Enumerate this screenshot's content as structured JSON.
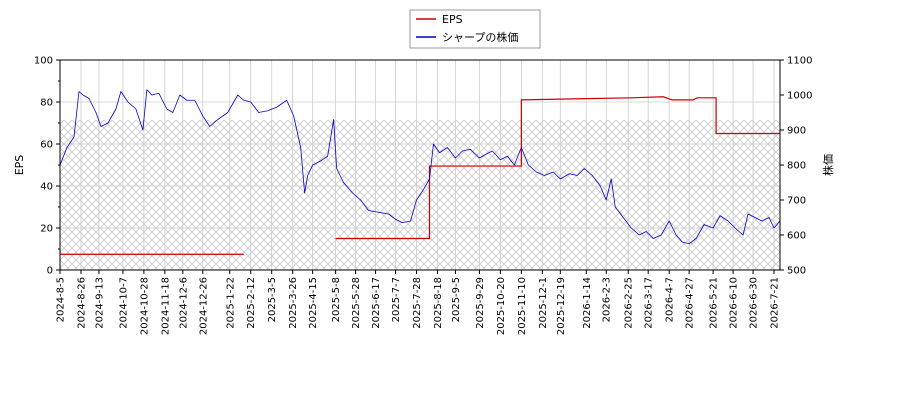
{
  "chart_data": {
    "type": "line",
    "legend": {
      "placement": "top-center",
      "entries": [
        "EPS",
        "シャープの株価"
      ]
    },
    "xlabel": "",
    "ylabel_left": "EPS",
    "ylabel_right": "株価",
    "ylim_left": [
      0,
      100
    ],
    "ylim_right": [
      500,
      1100
    ],
    "yticks_left": [
      "0",
      "20",
      "40",
      "60",
      "80",
      "100"
    ],
    "yticks_right": [
      "500",
      "600",
      "700",
      "800",
      "900",
      "1000",
      "1100"
    ],
    "x_range": [
      "2024-8-5",
      "2026-7-27"
    ],
    "x_tick_labels": [
      "2024-8-5",
      "2024-8-26",
      "2024-9-13",
      "2024-10-7",
      "2024-10-28",
      "2024-11-18",
      "2024-12-6",
      "2024-12-26",
      "2025-1-22",
      "2025-2-12",
      "2025-3-5",
      "2025-3-26",
      "2025-4-15",
      "2025-5-8",
      "2025-5-28",
      "2025-6-17",
      "2025-7-7",
      "2025-7-28",
      "2025-8-18",
      "2025-9-5",
      "2025-9-29",
      "2025-10-20",
      "2025-11-10",
      "2025-12-1",
      "2025-12-19",
      "2026-1-14",
      "2026-2-3",
      "2026-2-25",
      "2026-3-17",
      "2026-4-7",
      "2026-4-27",
      "2026-5-21",
      "2026-6-10",
      "2026-6-30",
      "2026-7-21"
    ],
    "grid": true,
    "colors": {
      "eps": "#cc0000",
      "price": "#0000cc"
    },
    "series": [
      {
        "name": "EPS",
        "axis": "left",
        "color": "#cc0000",
        "step": true,
        "segments": [
          {
            "points": [
              [
                "2024-8-5",
                7.5
              ],
              [
                "2025-2-5",
                7.5
              ]
            ]
          },
          {
            "points": [
              [
                "2025-5-8",
                15
              ],
              [
                "2025-8-10",
                15
              ],
              [
                "2025-8-10",
                49.5
              ],
              [
                "2025-11-10",
                49.5
              ],
              [
                "2025-11-10",
                81
              ],
              [
                "2026-1-1",
                81.5
              ],
              [
                "2026-3-1",
                82
              ],
              [
                "2026-4-1",
                82.5
              ],
              [
                "2026-4-10",
                81
              ],
              [
                "2026-5-1",
                81
              ],
              [
                "2026-5-5",
                82
              ],
              [
                "2026-5-24",
                82
              ],
              [
                "2026-5-24",
                65
              ],
              [
                "2026-7-31",
                65
              ]
            ]
          }
        ]
      },
      {
        "name": "シャープの株価",
        "axis": "right",
        "color": "#0000cc",
        "points": [
          [
            "2024-8-5",
            800
          ],
          [
            "2024-8-12",
            850
          ],
          [
            "2024-8-19",
            880
          ],
          [
            "2024-8-24",
            1010
          ],
          [
            "2024-8-28",
            1000
          ],
          [
            "2024-9-3",
            990
          ],
          [
            "2024-9-10",
            950
          ],
          [
            "2024-9-15",
            910
          ],
          [
            "2024-9-22",
            920
          ],
          [
            "2024-9-30",
            960
          ],
          [
            "2024-10-5",
            1010
          ],
          [
            "2024-10-12",
            980
          ],
          [
            "2024-10-20",
            960
          ],
          [
            "2024-10-27",
            900
          ],
          [
            "2024-10-31",
            1015
          ],
          [
            "2024-11-5",
            1000
          ],
          [
            "2024-11-12",
            1005
          ],
          [
            "2024-11-20",
            960
          ],
          [
            "2024-11-26",
            950
          ],
          [
            "2024-12-3",
            1000
          ],
          [
            "2024-12-10",
            985
          ],
          [
            "2024-12-18",
            985
          ],
          [
            "2024-12-26",
            940
          ],
          [
            "2025-1-2",
            910
          ],
          [
            "2025-1-10",
            930
          ],
          [
            "2025-1-20",
            950
          ],
          [
            "2025-1-30",
            1000
          ],
          [
            "2025-2-5",
            985
          ],
          [
            "2025-2-12",
            980
          ],
          [
            "2025-2-20",
            950
          ],
          [
            "2025-3-1",
            955
          ],
          [
            "2025-3-10",
            965
          ],
          [
            "2025-3-20",
            985
          ],
          [
            "2025-3-27",
            940
          ],
          [
            "2025-4-3",
            850
          ],
          [
            "2025-4-7",
            720
          ],
          [
            "2025-4-10",
            770
          ],
          [
            "2025-4-15",
            800
          ],
          [
            "2025-4-22",
            810
          ],
          [
            "2025-4-30",
            825
          ],
          [
            "2025-5-6",
            930
          ],
          [
            "2025-5-9",
            790
          ],
          [
            "2025-5-16",
            750
          ],
          [
            "2025-5-25",
            720
          ],
          [
            "2025-6-2",
            700
          ],
          [
            "2025-6-10",
            670
          ],
          [
            "2025-6-20",
            665
          ],
          [
            "2025-6-30",
            660
          ],
          [
            "2025-7-7",
            645
          ],
          [
            "2025-7-14",
            635
          ],
          [
            "2025-7-22",
            640
          ],
          [
            "2025-7-28",
            700
          ],
          [
            "2025-8-4",
            730
          ],
          [
            "2025-8-10",
            760
          ],
          [
            "2025-8-14",
            860
          ],
          [
            "2025-8-20",
            835
          ],
          [
            "2025-8-28",
            850
          ],
          [
            "2025-9-5",
            820
          ],
          [
            "2025-9-12",
            840
          ],
          [
            "2025-9-20",
            845
          ],
          [
            "2025-9-29",
            820
          ],
          [
            "2025-10-5",
            830
          ],
          [
            "2025-10-12",
            840
          ],
          [
            "2025-10-20",
            815
          ],
          [
            "2025-10-27",
            825
          ],
          [
            "2025-11-3",
            800
          ],
          [
            "2025-11-10",
            850
          ],
          [
            "2025-11-17",
            800
          ],
          [
            "2025-11-25",
            780
          ],
          [
            "2025-12-3",
            770
          ],
          [
            "2025-12-12",
            780
          ],
          [
            "2025-12-19",
            760
          ],
          [
            "2025-12-28",
            775
          ],
          [
            "2026-1-5",
            770
          ],
          [
            "2026-1-12",
            790
          ],
          [
            "2026-1-20",
            770
          ],
          [
            "2026-1-28",
            740
          ],
          [
            "2026-2-3",
            700
          ],
          [
            "2026-2-8",
            760
          ],
          [
            "2026-2-12",
            680
          ],
          [
            "2026-2-20",
            650
          ],
          [
            "2026-2-28",
            620
          ],
          [
            "2026-3-8",
            600
          ],
          [
            "2026-3-15",
            610
          ],
          [
            "2026-3-22",
            590
          ],
          [
            "2026-3-30",
            600
          ],
          [
            "2026-4-7",
            640
          ],
          [
            "2026-4-14",
            600
          ],
          [
            "2026-4-20",
            580
          ],
          [
            "2026-4-27",
            575
          ],
          [
            "2026-5-4",
            590
          ],
          [
            "2026-5-12",
            630
          ],
          [
            "2026-5-21",
            620
          ],
          [
            "2026-5-28",
            655
          ],
          [
            "2026-6-5",
            640
          ],
          [
            "2026-6-12",
            620
          ],
          [
            "2026-6-20",
            600
          ],
          [
            "2026-6-25",
            660
          ],
          [
            "2026-7-2",
            650
          ],
          [
            "2026-7-9",
            640
          ],
          [
            "2026-7-16",
            650
          ],
          [
            "2026-7-21",
            620
          ],
          [
            "2026-7-27",
            640
          ],
          [
            "2026-7-31",
            630
          ]
        ]
      }
    ]
  }
}
